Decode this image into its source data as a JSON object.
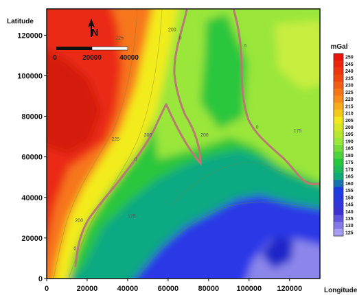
{
  "map": {
    "x_axis": {
      "label": "Longitude",
      "range": [
        0,
        135000
      ],
      "ticks": [
        "0",
        "20000",
        "40000",
        "60000",
        "80000",
        "100000",
        "120000"
      ],
      "tick_values": [
        0,
        20000,
        40000,
        60000,
        80000,
        100000,
        120000
      ]
    },
    "y_axis": {
      "label": "Latitude",
      "range": [
        0,
        133000
      ],
      "ticks": [
        "0",
        "20000",
        "40000",
        "60000",
        "80000",
        "100000",
        "120000"
      ],
      "tick_values": [
        0,
        20000,
        40000,
        60000,
        80000,
        100000,
        120000
      ]
    },
    "north_arrow": {
      "label": "N"
    },
    "scale_bar": {
      "labels": [
        "0",
        "20000",
        "40000"
      ],
      "values": [
        0,
        20000,
        40000
      ]
    },
    "colorbar": {
      "unit": "mGal",
      "levels": [
        250,
        245,
        240,
        235,
        230,
        225,
        220,
        215,
        210,
        205,
        200,
        195,
        190,
        185,
        180,
        175,
        170,
        165,
        160,
        155,
        150,
        145,
        140,
        135,
        130,
        125
      ],
      "labels": [
        "250",
        "245",
        "240",
        "235",
        "230",
        "225",
        "220",
        "215",
        "210",
        "205",
        "200",
        "195",
        "190",
        "185",
        "180",
        "175",
        "170",
        "165",
        "160",
        "155",
        "150",
        "145",
        "140",
        "135",
        "130",
        "125"
      ]
    },
    "contour_labels": [
      {
        "text": "225",
        "x": 36000,
        "y": 118000
      },
      {
        "text": "200",
        "x": 62000,
        "y": 122000
      },
      {
        "text": "0",
        "x": 66000,
        "y": 118000
      },
      {
        "text": "0",
        "x": 98000,
        "y": 114000
      },
      {
        "text": "225",
        "x": 34000,
        "y": 68000
      },
      {
        "text": "200",
        "x": 50000,
        "y": 70000
      },
      {
        "text": "0",
        "x": 44000,
        "y": 58000
      },
      {
        "text": "200",
        "x": 78000,
        "y": 70000
      },
      {
        "text": "0",
        "x": 104000,
        "y": 74000
      },
      {
        "text": "175",
        "x": 124000,
        "y": 72000
      },
      {
        "text": "200",
        "x": 16000,
        "y": 28000
      },
      {
        "text": "175",
        "x": 42000,
        "y": 30000
      },
      {
        "text": "0",
        "x": 14000,
        "y": 14000
      }
    ],
    "field_colors": {
      "red": "#ea2a12",
      "orange": "#f7771c",
      "yellow": "#f3ec1c",
      "light_green": "#9ae63b",
      "green": "#2cc63d",
      "teal": "#0fa982",
      "blue": "#2c37e6",
      "violet": "#8b87ea",
      "zero_line": "#b87a72"
    }
  }
}
